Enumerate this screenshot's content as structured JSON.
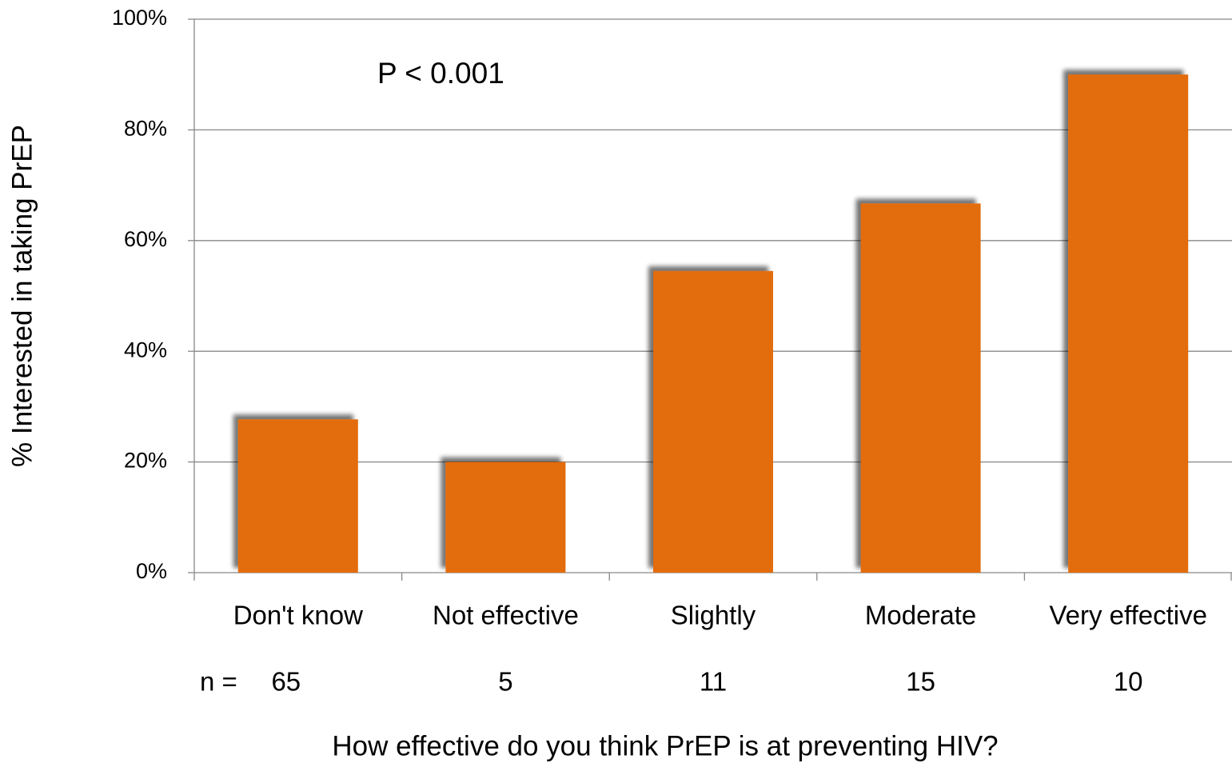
{
  "chart_data": {
    "type": "bar",
    "y_label": "% Interested in taking PrEP",
    "x_label": "How effective do you think PrEP is at preventing HIV?",
    "annotation": "P < 0.001",
    "categories": [
      "Don't know",
      "Not effective",
      "Slightly",
      "Moderate",
      "Very effective"
    ],
    "values": [
      27.7,
      20,
      54.5,
      66.7,
      90
    ],
    "color": "#e36c0a",
    "n_label": "n =",
    "n_values": [
      65,
      5,
      11,
      15,
      10
    ],
    "ylim": [
      0,
      100
    ],
    "yticks": [
      {
        "value": 0,
        "label": "0%"
      },
      {
        "value": 20,
        "label": "20%"
      },
      {
        "value": 40,
        "label": "40%"
      },
      {
        "value": 60,
        "label": "60%"
      },
      {
        "value": 80,
        "label": "80%"
      },
      {
        "value": 100,
        "label": "100%"
      }
    ],
    "grid": true
  }
}
